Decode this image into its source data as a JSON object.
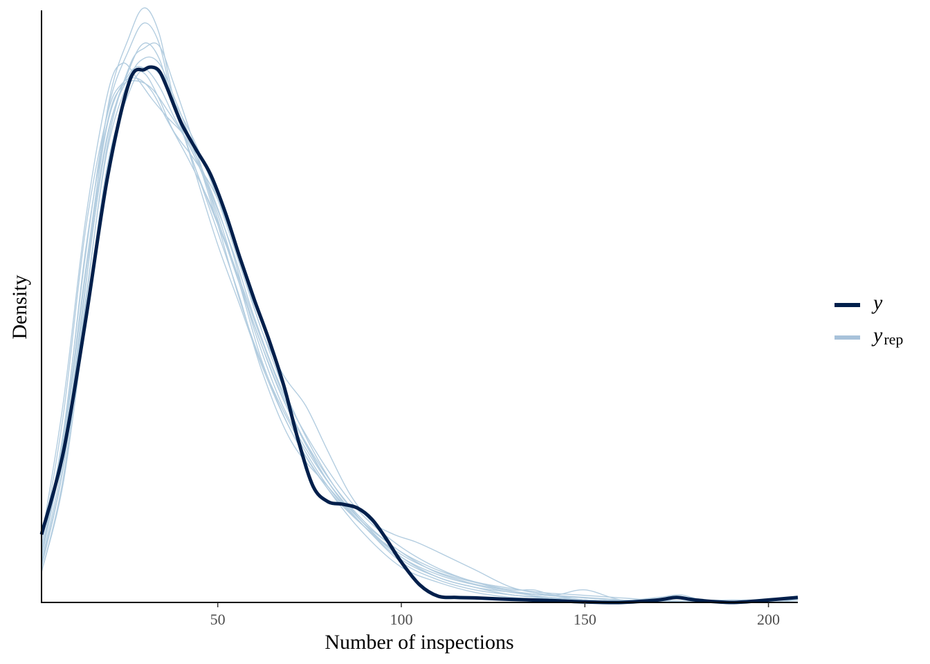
{
  "chart_data": {
    "type": "line",
    "title": "",
    "xlabel": "Number of inspections",
    "ylabel": "Density",
    "xlim": [
      2,
      208
    ],
    "ylim": [
      0,
      0.0235
    ],
    "x_ticks": [
      50,
      100,
      150,
      200
    ],
    "x_tick_labels": [
      "50",
      "100",
      "150",
      "200"
    ],
    "grid": false,
    "legend_position": "right",
    "colors": {
      "y": "#011f4b",
      "yrep": "#b3cde0",
      "axis": "#000000"
    },
    "series": [
      {
        "name": "y",
        "label_main": "y",
        "label_sub": "",
        "x": [
          2,
          8,
          14,
          20,
          26,
          30,
          32,
          34,
          36,
          40,
          44,
          48,
          52,
          56,
          60,
          64,
          68,
          72,
          76,
          80,
          84,
          88,
          92,
          96,
          100,
          105,
          110,
          115,
          120,
          130,
          140,
          150,
          160,
          170,
          175,
          180,
          190,
          200,
          208
        ],
        "values": [
          0.0027,
          0.006,
          0.0112,
          0.0169,
          0.0207,
          0.02115,
          0.02125,
          0.0211,
          0.0205,
          0.01905,
          0.018,
          0.017,
          0.0155,
          0.0137,
          0.012,
          0.0104,
          0.0086,
          0.0064,
          0.0046,
          0.004,
          0.0039,
          0.00375,
          0.0033,
          0.0025,
          0.0016,
          0.0007,
          0.00025,
          0.0002,
          0.00018,
          0.00012,
          8e-05,
          2e-05,
          0.0,
          0.0001,
          0.0002,
          0.0001,
          0.0,
          0.0001,
          0.0002
        ]
      },
      {
        "name": "yrep",
        "label_main": "y",
        "label_sub": "rep",
        "draws": [
          {
            "x": [
              2,
              8,
              14,
              20,
              26,
              30,
              34,
              38,
              44,
              50,
              56,
              62,
              70,
              80,
              90,
              100,
              110,
              120,
              130,
              140,
              150,
              160,
              170,
              180,
              190,
              200,
              208
            ],
            "values": [
              0.0015,
              0.0055,
              0.0125,
              0.0196,
              0.0225,
              0.0236,
              0.0226,
              0.02,
              0.017,
              0.0142,
              0.0118,
              0.0094,
              0.0068,
              0.0045,
              0.0027,
              0.0014,
              0.0008,
              0.0004,
              0.0002,
              0.0001,
              6e-05,
              3e-05,
              2e-05,
              1e-05,
              1e-05,
              1e-05,
              1e-05
            ]
          },
          {
            "x": [
              2,
              8,
              14,
              20,
              26,
              30,
              34,
              38,
              44,
              50,
              56,
              62,
              70,
              80,
              90,
              100,
              110,
              120,
              130,
              140,
              150,
              160,
              170,
              180,
              190,
              200,
              208
            ],
            "values": [
              0.002,
              0.0068,
              0.0138,
              0.0195,
              0.022,
              0.023,
              0.0222,
              0.0198,
              0.0172,
              0.0147,
              0.0121,
              0.0092,
              0.0064,
              0.0046,
              0.003,
              0.0016,
              0.0009,
              0.0005,
              0.0003,
              0.00015,
              0.0001,
              5e-05,
              3e-05,
              2e-05,
              1e-05,
              1e-05,
              1e-05
            ]
          },
          {
            "x": [
              2,
              8,
              14,
              20,
              26,
              30,
              34,
              38,
              44,
              50,
              56,
              62,
              70,
              80,
              90,
              100,
              110,
              120,
              130,
              140,
              150,
              160,
              170,
              180,
              190,
              200,
              208
            ],
            "values": [
              0.0012,
              0.005,
              0.0118,
              0.0182,
              0.0213,
              0.022,
              0.0221,
              0.0206,
              0.018,
              0.0152,
              0.0126,
              0.0102,
              0.0074,
              0.0048,
              0.0031,
              0.0018,
              0.001,
              0.0006,
              0.0003,
              0.0002,
              0.0001,
              5e-05,
              3e-05,
              2e-05,
              1e-05,
              1e-05,
              1e-05
            ]
          },
          {
            "x": [
              2,
              8,
              14,
              20,
              24,
              28,
              32,
              36,
              42,
              48,
              54,
              60,
              68,
              78,
              88,
              98,
              108,
              118,
              128,
              138,
              148,
              158,
              168,
              178,
              188,
              198,
              208
            ],
            "values": [
              0.0025,
              0.008,
              0.0152,
              0.0202,
              0.0214,
              0.0208,
              0.02,
              0.0193,
              0.0183,
              0.0164,
              0.0139,
              0.0108,
              0.0077,
              0.0052,
              0.0034,
              0.0022,
              0.0013,
              0.0008,
              0.0005,
              0.0003,
              0.0002,
              0.0001,
              6e-05,
              3e-05,
              2e-05,
              1e-05,
              1e-05
            ]
          },
          {
            "x": [
              2,
              8,
              14,
              20,
              24,
              28,
              32,
              36,
              42,
              48,
              54,
              60,
              68,
              78,
              88,
              98,
              108,
              118,
              128,
              138,
              148,
              158,
              168,
              178,
              188,
              198,
              208
            ],
            "values": [
              0.0022,
              0.0075,
              0.0148,
              0.0194,
              0.0206,
              0.0208,
              0.0203,
              0.0192,
              0.0176,
              0.0158,
              0.0136,
              0.011,
              0.008,
              0.0054,
              0.0035,
              0.0022,
              0.0014,
              0.0009,
              0.0005,
              0.0003,
              0.0002,
              0.0001,
              6e-05,
              3e-05,
              2e-05,
              1e-05,
              1e-05
            ]
          },
          {
            "x": [
              2,
              8,
              14,
              20,
              24,
              28,
              32,
              36,
              42,
              48,
              54,
              60,
              68,
              78,
              88,
              98,
              108,
              118,
              128,
              138,
              148,
              158,
              168,
              178,
              188,
              198,
              208
            ],
            "values": [
              0.0018,
              0.0066,
              0.014,
              0.0191,
              0.0205,
              0.0207,
              0.0204,
              0.0196,
              0.0182,
              0.0163,
              0.014,
              0.0113,
              0.0083,
              0.0057,
              0.0037,
              0.0024,
              0.0015,
              0.0009,
              0.0006,
              0.0004,
              0.0003,
              0.0002,
              0.0001,
              5e-05,
              2e-05,
              1e-05,
              1e-05
            ]
          },
          {
            "x": [
              2,
              8,
              14,
              20,
              26,
              30,
              34,
              38,
              44,
              50,
              56,
              62,
              68,
              74,
              80,
              86,
              92,
              98,
              104,
              110,
              120,
              130,
              140,
              150,
              160,
              170,
              180,
              190,
              200,
              208
            ],
            "values": [
              0.0018,
              0.0062,
              0.013,
              0.0186,
              0.0209,
              0.021,
              0.02,
              0.0187,
              0.0175,
              0.016,
              0.0136,
              0.0108,
              0.009,
              0.0078,
              0.006,
              0.0043,
              0.0032,
              0.0027,
              0.0024,
              0.002,
              0.0013,
              0.0006,
              0.0003,
              0.0001,
              5e-05,
              3e-05,
              2e-05,
              1e-05,
              1e-05,
              1e-05
            ]
          },
          {
            "x": [
              2,
              8,
              14,
              20,
              26,
              30,
              34,
              38,
              44,
              50,
              56,
              62,
              70,
              80,
              90,
              100,
              110,
              120,
              130,
              140,
              150,
              160,
              170,
              180,
              190,
              200,
              208
            ],
            "values": [
              0.0016,
              0.0058,
              0.0126,
              0.0185,
              0.0212,
              0.0222,
              0.0216,
              0.0197,
              0.0172,
              0.015,
              0.0128,
              0.0104,
              0.0075,
              0.0048,
              0.003,
              0.0017,
              0.001,
              0.0006,
              0.0004,
              0.0002,
              0.0001,
              5e-05,
              3e-05,
              2e-05,
              1e-05,
              1e-05,
              1e-05
            ]
          },
          {
            "x": [
              2,
              8,
              14,
              20,
              26,
              30,
              34,
              38,
              44,
              50,
              56,
              62,
              70,
              80,
              90,
              100,
              110,
              120,
              130,
              140,
              150,
              160,
              170,
              180,
              190,
              200,
              208
            ],
            "values": [
              0.0014,
              0.0054,
              0.012,
              0.018,
              0.0208,
              0.0216,
              0.0214,
              0.0201,
              0.0178,
              0.015,
              0.012,
              0.0095,
              0.007,
              0.0046,
              0.003,
              0.0018,
              0.0011,
              0.0007,
              0.0004,
              0.0003,
              0.0002,
              0.0001,
              5e-05,
              2e-05,
              1e-05,
              1e-05,
              1e-05
            ]
          },
          {
            "x": [
              2,
              8,
              14,
              20,
              26,
              30,
              34,
              38,
              44,
              50,
              56,
              62,
              70,
              80,
              90,
              100,
              110,
              120,
              130,
              136,
              142,
              150,
              160,
              170,
              176,
              182,
              190,
              200,
              208
            ],
            "values": [
              0.002,
              0.0065,
              0.0132,
              0.019,
              0.021,
              0.0212,
              0.0205,
              0.0193,
              0.0176,
              0.0154,
              0.0126,
              0.0096,
              0.0068,
              0.0045,
              0.003,
              0.0019,
              0.0012,
              0.0008,
              0.0005,
              0.0005,
              0.0003,
              0.0005,
              0.0001,
              0.0002,
              0.0003,
              0.0001,
              0.0001,
              0.0001,
              0.0001
            ]
          },
          {
            "x": [
              2,
              8,
              14,
              20,
              26,
              30,
              34,
              38,
              44,
              50,
              56,
              62,
              70,
              80,
              90,
              100,
              110,
              120,
              130,
              140,
              150,
              160,
              170,
              180,
              190,
              200,
              208
            ],
            "values": [
              0.0012,
              0.0048,
              0.0112,
              0.0174,
              0.0203,
              0.0212,
              0.021,
              0.0199,
              0.0182,
              0.016,
              0.0134,
              0.0108,
              0.0078,
              0.005,
              0.0031,
              0.0018,
              0.001,
              0.0006,
              0.0003,
              0.0002,
              0.0001,
              5e-05,
              3e-05,
              2e-05,
              1e-05,
              1e-05,
              0.0001
            ]
          }
        ]
      }
    ]
  }
}
